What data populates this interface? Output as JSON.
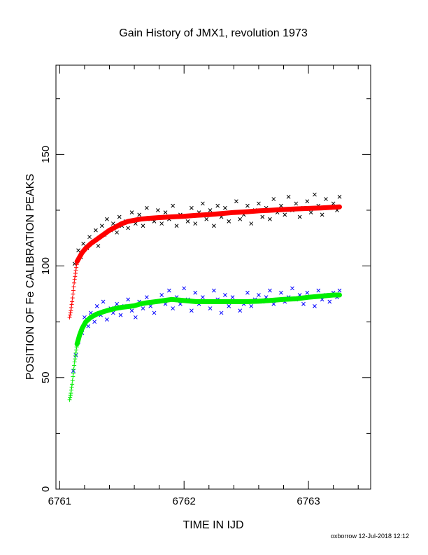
{
  "chart_data": {
    "type": "scatter",
    "title": "Gain History of JMX1, revolution 1973",
    "xlabel": "TIME IN IJD",
    "ylabel": "POSITION OF Fe CALIBRATION PEAKS",
    "xlim": [
      6760.97,
      6763.5
    ],
    "ylim": [
      0,
      190
    ],
    "x_ticks": [
      6761,
      6762,
      6763
    ],
    "y_ticks": [
      0,
      50,
      100,
      150
    ],
    "grid": false,
    "footer": "oxborrow 12-Jul-2018 12:12",
    "series": [
      {
        "role": "upper-fit",
        "marker": "plus-line",
        "color": "#ff0000",
        "x": [
          6761.08,
          6761.09,
          6761.1,
          6761.11,
          6761.12,
          6761.13,
          6761.14,
          6761.16,
          6761.18,
          6761.21,
          6761.25,
          6761.3,
          6761.35,
          6761.4,
          6761.45,
          6761.5,
          6761.55,
          6761.6,
          6761.65,
          6761.7,
          6761.8,
          6761.9,
          6762.0,
          6762.1,
          6762.2,
          6762.3,
          6762.4,
          6762.5,
          6762.6,
          6762.7,
          6762.8,
          6762.9,
          6763.0,
          6763.1,
          6763.2,
          6763.25
        ],
        "y": [
          77,
          80,
          84,
          89,
          94,
          98,
          102,
          104,
          106,
          108,
          110,
          112,
          114,
          116,
          117.5,
          119,
          120,
          120.5,
          121,
          121.3,
          121.7,
          122,
          122.3,
          122.7,
          123,
          123.5,
          124,
          124.3,
          124.7,
          125,
          125.3,
          125.6,
          125.8,
          126,
          126.3,
          126.5
        ]
      },
      {
        "role": "lower-fit",
        "marker": "plus-line",
        "color": "#00ee00",
        "x": [
          6761.08,
          6761.09,
          6761.1,
          6761.11,
          6761.12,
          6761.13,
          6761.14,
          6761.16,
          6761.18,
          6761.21,
          6761.25,
          6761.3,
          6761.35,
          6761.4,
          6761.45,
          6761.5,
          6761.55,
          6761.6,
          6761.65,
          6761.7,
          6761.8,
          6761.9,
          6762.0,
          6762.1,
          6762.2,
          6762.3,
          6762.4,
          6762.5,
          6762.6,
          6762.7,
          6762.8,
          6762.9,
          6763.0,
          6763.1,
          6763.2,
          6763.25
        ],
        "y": [
          40,
          43,
          47,
          52,
          57,
          61,
          65,
          69,
          72,
          75,
          77,
          78.5,
          79.5,
          80.3,
          81,
          81.5,
          81.8,
          82.2,
          83,
          83.5,
          84.2,
          85,
          84.5,
          84,
          84,
          84,
          84,
          84,
          84.2,
          84.6,
          85,
          85.3,
          86,
          86.5,
          87,
          87
        ]
      },
      {
        "role": "upper-measurements",
        "marker": "x",
        "color": "#000000",
        "x": [
          6761.12,
          6761.15,
          6761.17,
          6761.19,
          6761.22,
          6761.24,
          6761.27,
          6761.29,
          6761.31,
          6761.34,
          6761.36,
          6761.38,
          6761.41,
          6761.43,
          6761.46,
          6761.48,
          6761.5,
          6761.53,
          6761.55,
          6761.58,
          6761.61,
          6761.64,
          6761.67,
          6761.7,
          6761.73,
          6761.76,
          6761.79,
          6761.82,
          6761.85,
          6761.88,
          6761.91,
          6761.94,
          6761.97,
          6762.0,
          6762.03,
          6762.06,
          6762.09,
          6762.12,
          6762.15,
          6762.18,
          6762.21,
          6762.24,
          6762.27,
          6762.3,
          6762.33,
          6762.36,
          6762.39,
          6762.42,
          6762.45,
          6762.48,
          6762.51,
          6762.54,
          6762.57,
          6762.6,
          6762.63,
          6762.66,
          6762.69,
          6762.72,
          6762.75,
          6762.78,
          6762.81,
          6762.84,
          6762.87,
          6762.9,
          6762.93,
          6762.96,
          6762.99,
          6763.02,
          6763.05,
          6763.08,
          6763.11,
          6763.14,
          6763.17,
          6763.2,
          6763.23,
          6763.25
        ],
        "y": [
          101,
          107,
          104,
          110,
          108,
          113,
          111,
          116,
          109,
          118,
          114,
          121,
          116,
          119,
          115,
          122,
          118,
          120,
          117,
          124,
          119,
          123,
          118,
          126,
          121,
          120,
          125,
          119,
          124,
          121,
          127,
          118,
          123,
          122,
          120,
          126,
          119,
          124,
          128,
          121,
          125,
          118,
          127,
          122,
          126,
          120,
          124,
          129,
          121,
          123,
          127,
          119,
          125,
          128,
          122,
          126,
          121,
          130,
          124,
          127,
          123,
          131,
          125,
          128,
          122,
          126,
          129,
          124,
          132,
          127,
          123,
          130,
          126,
          128,
          125,
          131
        ]
      },
      {
        "role": "lower-measurements",
        "marker": "x",
        "color": "#0000ff",
        "x": [
          6761.11,
          6761.13,
          6761.15,
          6761.18,
          6761.2,
          6761.23,
          6761.25,
          6761.28,
          6761.3,
          6761.33,
          6761.35,
          6761.38,
          6761.41,
          6761.43,
          6761.46,
          6761.49,
          6761.52,
          6761.55,
          6761.58,
          6761.61,
          6761.64,
          6761.67,
          6761.7,
          6761.73,
          6761.76,
          6761.79,
          6761.82,
          6761.85,
          6761.88,
          6761.91,
          6761.94,
          6761.97,
          6762.0,
          6762.03,
          6762.06,
          6762.09,
          6762.12,
          6762.15,
          6762.18,
          6762.21,
          6762.24,
          6762.27,
          6762.3,
          6762.33,
          6762.36,
          6762.39,
          6762.42,
          6762.45,
          6762.48,
          6762.51,
          6762.54,
          6762.57,
          6762.6,
          6762.63,
          6762.66,
          6762.69,
          6762.72,
          6762.75,
          6762.78,
          6762.81,
          6762.84,
          6762.87,
          6762.9,
          6762.93,
          6762.96,
          6762.99,
          6763.02,
          6763.05,
          6763.08,
          6763.11,
          6763.14,
          6763.17,
          6763.2,
          6763.23,
          6763.25
        ],
        "y": [
          53,
          60,
          66,
          70,
          77,
          73,
          79,
          75,
          82,
          78,
          84,
          76,
          81,
          79,
          83,
          78,
          82,
          85,
          80,
          77,
          84,
          81,
          86,
          82,
          79,
          84,
          87,
          83,
          89,
          81,
          86,
          83,
          90,
          85,
          80,
          88,
          83,
          86,
          84,
          81,
          89,
          85,
          79,
          87,
          82,
          86,
          84,
          80,
          83,
          88,
          82,
          85,
          87,
          84,
          86,
          89,
          83,
          85,
          88,
          84,
          86,
          90,
          85,
          87,
          83,
          88,
          86,
          82,
          89,
          85,
          87,
          84,
          88,
          86,
          89
        ]
      }
    ]
  }
}
